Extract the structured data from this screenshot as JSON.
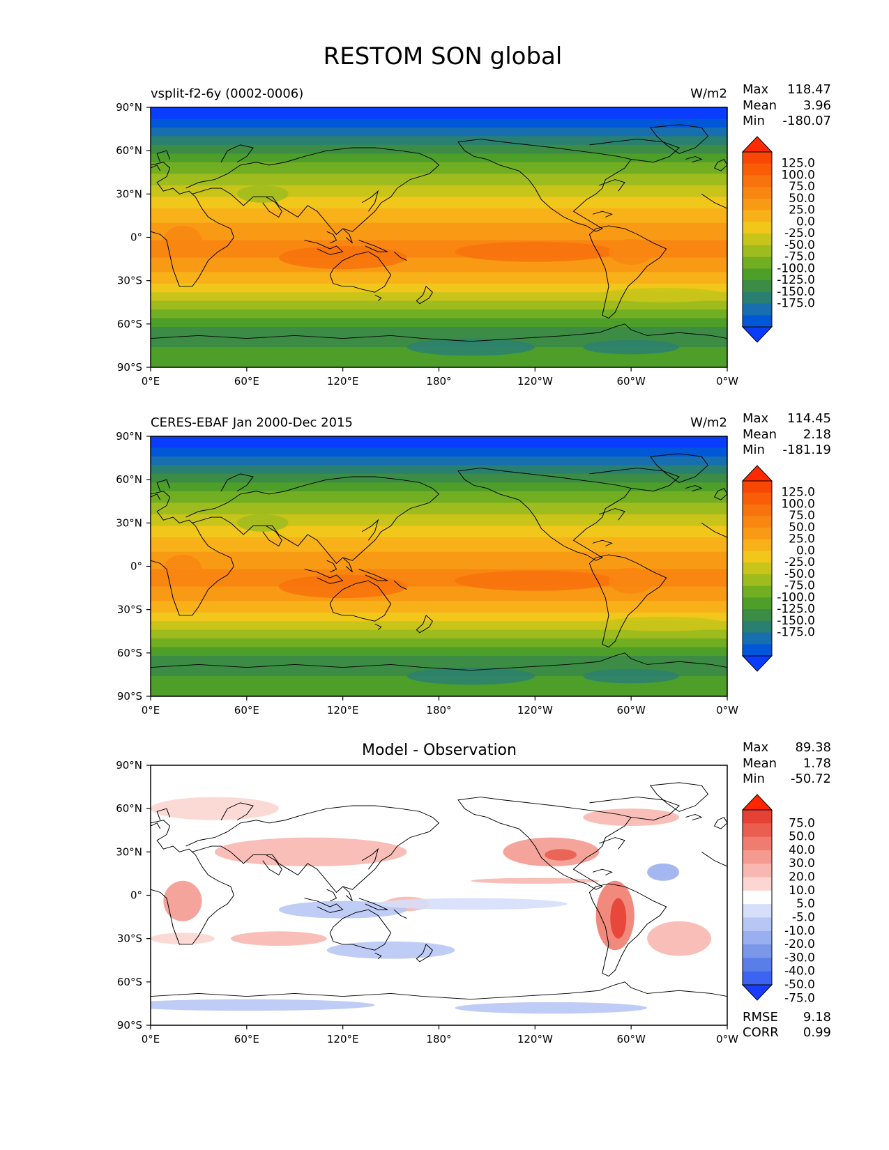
{
  "figure_title": "RESTOM SON global",
  "axes": {
    "lat_ticks": [
      "90°N",
      "60°N",
      "30°N",
      "0°",
      "30°S",
      "60°S",
      "90°S"
    ],
    "lon_ticks": [
      "0°E",
      "60°E",
      "120°E",
      "180°",
      "120°W",
      "60°W",
      "0°W"
    ]
  },
  "colors": {
    "abs_palette": [
      "#0a3cff",
      "#0058d8",
      "#176fb0",
      "#2a8070",
      "#3d8c45",
      "#4e9e2a",
      "#72ae22",
      "#9fbc1e",
      "#c8c41a",
      "#f0c71a",
      "#f8b118",
      "#f99a14",
      "#f88610",
      "#f8720d",
      "#f95d08",
      "#fb3e03"
    ],
    "abs_colorbar_palette": [
      "#0a3cff",
      "#0058d8",
      "#176fb0",
      "#2a8070",
      "#3d8c45",
      "#4e9e2a",
      "#72ae22",
      "#9fbc1e",
      "#c8c41a",
      "#f0c71a",
      "#f8b118",
      "#f99a14",
      "#f88610",
      "#f8720d",
      "#f95d08",
      "#f84705",
      "#ff2a00"
    ],
    "diff_colorbar_palette": [
      "#1a3cff",
      "#3d64f0",
      "#5a7ee8",
      "#7b97ea",
      "#9aaff0",
      "#b8c6f4",
      "#d6def9",
      "#ffffff",
      "#fbd6d2",
      "#f8b7b0",
      "#f49a90",
      "#ef7c6f",
      "#ea5e50",
      "#e54134",
      "#ff2500"
    ]
  },
  "panels": [
    {
      "id": "test",
      "left_title": "vsplit-f2-6y (0002-0006)",
      "units": "W/m2",
      "center_title": "",
      "stats": [
        {
          "label": "Max",
          "value": "118.47"
        },
        {
          "label": "Mean",
          "value": "3.96"
        },
        {
          "label": "Min",
          "value": "-180.07"
        }
      ],
      "colorbar_labels": [
        "125.0",
        "100.0",
        "75.0",
        "50.0",
        "25.0",
        "0.0",
        "-25.0",
        "-50.0",
        "-75.0",
        "-100.0",
        "-125.0",
        "-150.0",
        "-175.0"
      ],
      "footer_stats": []
    },
    {
      "id": "reference",
      "left_title": "CERES-EBAF Jan 2000-Dec 2015",
      "units": "W/m2",
      "center_title": "",
      "stats": [
        {
          "label": "Max",
          "value": "114.45"
        },
        {
          "label": "Mean",
          "value": "2.18"
        },
        {
          "label": "Min",
          "value": "-181.19"
        }
      ],
      "colorbar_labels": [
        "125.0",
        "100.0",
        "75.0",
        "50.0",
        "25.0",
        "0.0",
        "-25.0",
        "-50.0",
        "-75.0",
        "-100.0",
        "-125.0",
        "-150.0",
        "-175.0"
      ],
      "footer_stats": []
    },
    {
      "id": "difference",
      "left_title": "",
      "units": "",
      "center_title": "Model - Observation",
      "stats": [
        {
          "label": "Max",
          "value": "89.38"
        },
        {
          "label": "Mean",
          "value": "1.78"
        },
        {
          "label": "Min",
          "value": "-50.72"
        }
      ],
      "colorbar_labels": [
        "75.0",
        "50.0",
        "40.0",
        "30.0",
        "20.0",
        "10.0",
        "5.0",
        "-5.0",
        "-10.0",
        "-20.0",
        "-30.0",
        "-40.0",
        "-50.0",
        "-75.0"
      ],
      "footer_stats": [
        {
          "label": "RMSE",
          "value": "9.18"
        },
        {
          "label": "CORR",
          "value": "0.99"
        }
      ]
    }
  ]
}
